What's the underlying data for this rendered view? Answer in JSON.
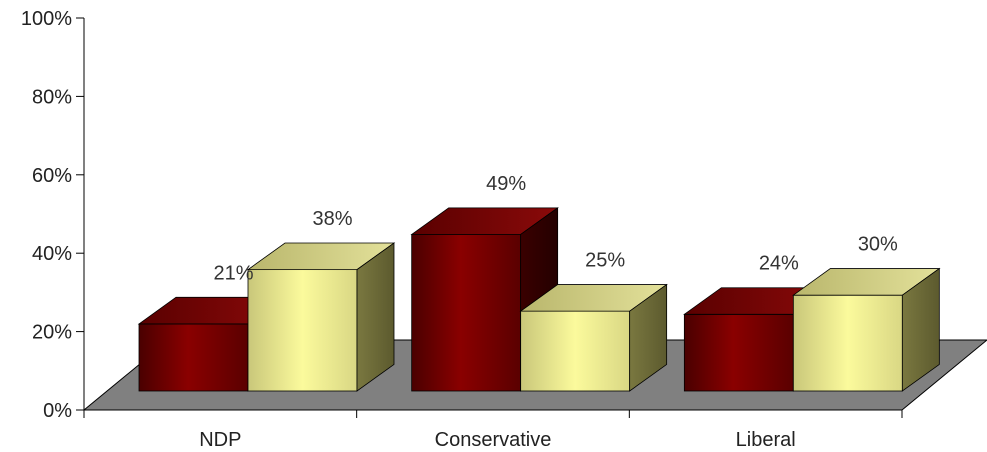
{
  "chart_data": {
    "type": "bar",
    "categories": [
      "NDP",
      "Conservative",
      "Liberal"
    ],
    "series": [
      {
        "values": [
          21,
          49,
          24
        ],
        "color": "#7a0000"
      },
      {
        "values": [
          38,
          25,
          30
        ],
        "color": "#f3f29a"
      }
    ],
    "data_labels": [
      [
        "21%",
        "49%",
        "24%"
      ],
      [
        "38%",
        "25%",
        "30%"
      ]
    ],
    "ylim": [
      0,
      100
    ],
    "yticks": [
      0,
      20,
      40,
      60,
      80,
      100
    ],
    "ytick_labels": [
      "0%",
      "20%",
      "40%",
      "60%",
      "80%",
      "100%"
    ],
    "floor_color": "#808080",
    "grid": false,
    "three_d": true
  }
}
